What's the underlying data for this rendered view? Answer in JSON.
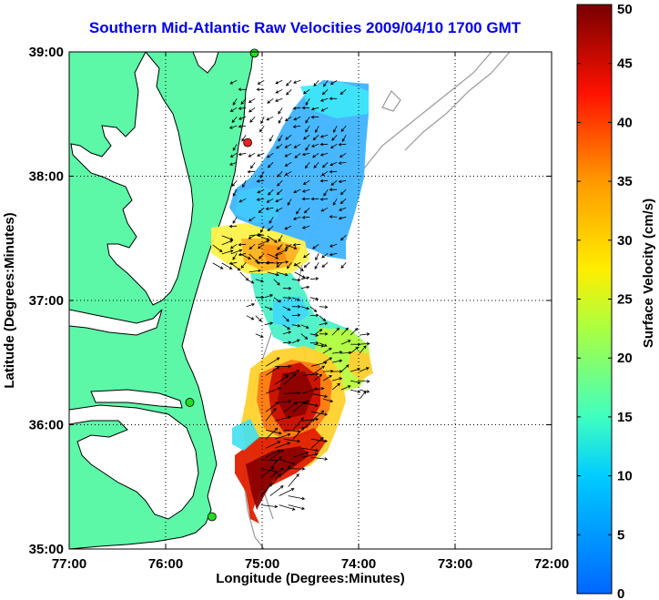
{
  "title": "Southern Mid-Atlantic Raw Velocities 2009/04/10 1700 GMT",
  "xlabel": "Longitude (Degrees:Minutes)",
  "ylabel": "Latitude (Degrees:Minutes)",
  "colorbar": {
    "label": "Surface Velocity (cm/s)",
    "ticks": [
      "0",
      "5",
      "10",
      "15",
      "20",
      "25",
      "30",
      "35",
      "40",
      "45",
      "50"
    ]
  },
  "chart_data": {
    "type": "map",
    "xlim": [
      -77,
      -72
    ],
    "ylim": [
      35,
      39
    ],
    "x_ticks": [
      "77:00",
      "76:00",
      "75:00",
      "74:00",
      "73:00",
      "72:00"
    ],
    "y_ticks": [
      "35:00",
      "36:00",
      "37:00",
      "38:00",
      "39:00"
    ],
    "grid": true,
    "colorbar_range": [
      0,
      50
    ],
    "colors": {
      "land": "#5cf8a8",
      "coastline": "#000000",
      "bathymetry": "#999999",
      "site_green": "#22dd22",
      "site_red": "#ee2222"
    },
    "stations": [
      {
        "lon": -75.08,
        "lat": 38.99,
        "color": "green"
      },
      {
        "lon": -75.15,
        "lat": 38.27,
        "color": "red"
      },
      {
        "lon": -75.75,
        "lat": 36.18,
        "color": "green"
      },
      {
        "lon": -75.52,
        "lat": 35.26,
        "color": "green"
      }
    ],
    "velocity_regions": [
      {
        "name": "north",
        "speed_cm_s": 8,
        "lon": [
          -75.3,
          -74.05
        ],
        "lat": [
          37.3,
          38.8
        ]
      },
      {
        "name": "mid-north",
        "speed_cm_s": 28,
        "lon": [
          -75.55,
          -74.6
        ],
        "lat": [
          37.2,
          37.55
        ]
      },
      {
        "name": "mid",
        "speed_cm_s": 12,
        "lon": [
          -75.2,
          -74.4
        ],
        "lat": [
          36.6,
          37.2
        ]
      },
      {
        "name": "south-east",
        "speed_cm_s": 20,
        "lon": [
          -74.5,
          -73.9
        ],
        "lat": [
          36.2,
          36.75
        ]
      },
      {
        "name": "south-core",
        "speed_cm_s": 48,
        "lon": [
          -75.0,
          -74.4
        ],
        "lat": [
          35.7,
          36.5
        ]
      },
      {
        "name": "south-tip",
        "speed_cm_s": 50,
        "lon": [
          -75.05,
          -74.7
        ],
        "lat": [
          35.3,
          35.75
        ]
      }
    ]
  }
}
